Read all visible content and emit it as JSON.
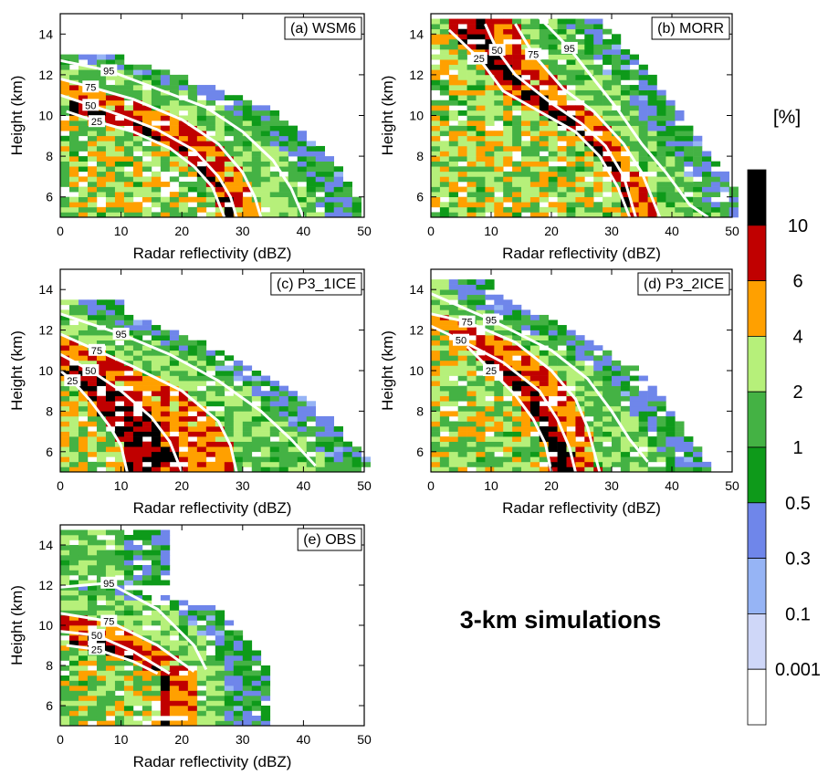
{
  "figure_title": "3-km simulations",
  "colorbar": {
    "unit_label": "[%]",
    "levels": [
      "0.001",
      "0.1",
      "0.3",
      "0.5",
      "1",
      "2",
      "4",
      "6",
      "10"
    ],
    "colors": [
      "#ffffff",
      "#cfd7f8",
      "#96b4f5",
      "#6f86ea",
      "#0e9a1a",
      "#44b244",
      "#b6f07a",
      "#ffa000",
      "#c00000",
      "#000000"
    ]
  },
  "chart_data": [
    {
      "type": "heatmap",
      "panel_label": "(a) WSM6",
      "xlabel": "Radar reflectivity (dBZ)",
      "ylabel": "Height (km)",
      "xlim": [
        0,
        50
      ],
      "ylim": [
        5,
        15
      ],
      "xticks": [
        "0",
        "10",
        "20",
        "30",
        "40",
        "50"
      ],
      "yticks": [
        "6",
        "8",
        "10",
        "12",
        "14"
      ],
      "echo_top_km": 13.0,
      "percentile_curves": [
        {
          "label": "25",
          "points": [
            [
              1,
              10.2
            ],
            [
              6,
              9.7
            ],
            [
              12,
              9.2
            ],
            [
              18,
              8.4
            ],
            [
              22,
              7.5
            ],
            [
              25,
              6.5
            ],
            [
              27,
              5
            ]
          ]
        },
        {
          "label": "50",
          "points": [
            [
              0,
              11.0
            ],
            [
              5,
              10.5
            ],
            [
              10,
              10.0
            ],
            [
              16,
              9.3
            ],
            [
              22,
              8.3
            ],
            [
              26,
              7.0
            ],
            [
              28,
              6.0
            ],
            [
              29,
              5
            ]
          ]
        },
        {
          "label": "75",
          "points": [
            [
              0,
              11.8
            ],
            [
              5,
              11.4
            ],
            [
              12,
              10.8
            ],
            [
              20,
              9.8
            ],
            [
              26,
              8.6
            ],
            [
              30,
              7.2
            ],
            [
              32,
              6.0
            ],
            [
              33,
              5
            ]
          ]
        },
        {
          "label": "95",
          "points": [
            [
              0,
              12.7
            ],
            [
              8,
              12.2
            ],
            [
              16,
              11.3
            ],
            [
              24,
              10.4
            ],
            [
              30,
              9.2
            ],
            [
              35,
              7.8
            ],
            [
              38,
              6.4
            ],
            [
              40,
              5
            ]
          ]
        }
      ]
    },
    {
      "type": "heatmap",
      "panel_label": "(b) MORR",
      "xlabel": "Radar reflectivity (dBZ)",
      "ylabel": "Height (km)",
      "xlim": [
        0,
        50
      ],
      "ylim": [
        5,
        15
      ],
      "xticks": [
        "0",
        "10",
        "20",
        "30",
        "40",
        "50"
      ],
      "yticks": [
        "6",
        "8",
        "10",
        "12",
        "14"
      ],
      "echo_top_km": 14.8,
      "percentile_curves": [
        {
          "label": "25",
          "points": [
            [
              3,
              14.2
            ],
            [
              8,
              12.8
            ],
            [
              12,
              11.2
            ],
            [
              18,
              10.2
            ],
            [
              24,
              9.2
            ],
            [
              28,
              8.0
            ],
            [
              31,
              6.5
            ],
            [
              33,
              5
            ]
          ]
        },
        {
          "label": "50",
          "points": [
            [
              9,
              14.5
            ],
            [
              11,
              13.2
            ],
            [
              14,
              12.0
            ],
            [
              20,
              10.6
            ],
            [
              25,
              9.6
            ],
            [
              29,
              8.5
            ],
            [
              32,
              7.0
            ],
            [
              34,
              5
            ]
          ]
        },
        {
          "label": "75",
          "points": [
            [
              14,
              14.5
            ],
            [
              17,
              13.0
            ],
            [
              22,
              11.3
            ],
            [
              27,
              10.2
            ],
            [
              32,
              8.6
            ],
            [
              35,
              7.2
            ],
            [
              38,
              5
            ]
          ]
        },
        {
          "label": "95",
          "points": [
            [
              18,
              14.8
            ],
            [
              23,
              13.3
            ],
            [
              27,
              11.8
            ],
            [
              31,
              10.3
            ],
            [
              35,
              8.6
            ],
            [
              39,
              7.2
            ],
            [
              43,
              5.6
            ],
            [
              46,
              5
            ]
          ]
        }
      ]
    },
    {
      "type": "heatmap",
      "panel_label": "(c) P3_1ICE",
      "xlabel": "Radar reflectivity (dBZ)",
      "ylabel": "Height (km)",
      "xlim": [
        0,
        50
      ],
      "ylim": [
        5,
        15
      ],
      "xticks": [
        "0",
        "10",
        "20",
        "30",
        "40",
        "50"
      ],
      "yticks": [
        "6",
        "8",
        "10",
        "12",
        "14"
      ],
      "echo_top_km": 13.6,
      "percentile_curves": [
        {
          "label": "25",
          "points": [
            [
              0,
              10.0
            ],
            [
              2,
              9.5
            ],
            [
              5,
              8.5
            ],
            [
              8,
              7.3
            ],
            [
              10,
              6.3
            ],
            [
              11,
              5
            ]
          ]
        },
        {
          "label": "50",
          "points": [
            [
              0,
              10.8
            ],
            [
              5,
              10.0
            ],
            [
              10,
              9.0
            ],
            [
              15,
              7.7
            ],
            [
              18,
              6.5
            ],
            [
              20,
              5
            ]
          ]
        },
        {
          "label": "75",
          "points": [
            [
              0,
              11.8
            ],
            [
              6,
              11.0
            ],
            [
              12,
              10.2
            ],
            [
              20,
              9.0
            ],
            [
              26,
              7.5
            ],
            [
              28,
              6.3
            ],
            [
              29,
              5
            ]
          ]
        },
        {
          "label": "95",
          "points": [
            [
              0,
              12.8
            ],
            [
              10,
              11.8
            ],
            [
              18,
              10.8
            ],
            [
              26,
              9.5
            ],
            [
              33,
              8.0
            ],
            [
              38,
              6.6
            ],
            [
              42,
              5.3
            ]
          ]
        }
      ]
    },
    {
      "type": "heatmap",
      "panel_label": "(d) P3_2ICE",
      "xlabel": "Radar reflectivity (dBZ)",
      "ylabel": "Height (km)",
      "xlim": [
        0,
        50
      ],
      "ylim": [
        5,
        15
      ],
      "xticks": [
        "0",
        "10",
        "20",
        "30",
        "40",
        "50"
      ],
      "yticks": [
        "6",
        "8",
        "10",
        "12",
        "14"
      ],
      "echo_top_km": 14.6,
      "percentile_curves": [
        {
          "label": "25",
          "points": [
            [
              6,
              11.2
            ],
            [
              10,
              10.0
            ],
            [
              14,
              8.8
            ],
            [
              17,
              7.6
            ],
            [
              19,
              6.4
            ],
            [
              20,
              5
            ]
          ]
        },
        {
          "label": "50",
          "points": [
            [
              0,
              12.2
            ],
            [
              5,
              11.5
            ],
            [
              12,
              10.4
            ],
            [
              18,
              9.0
            ],
            [
              21,
              7.6
            ],
            [
              23,
              6.2
            ],
            [
              24,
              5
            ]
          ]
        },
        {
          "label": "75",
          "points": [
            [
              0,
              12.8
            ],
            [
              6,
              12.4
            ],
            [
              14,
              11.4
            ],
            [
              20,
              10.0
            ],
            [
              24,
              8.6
            ],
            [
              26,
              7.2
            ],
            [
              28,
              5
            ]
          ]
        },
        {
          "label": "95",
          "points": [
            [
              0,
              13.8
            ],
            [
              10,
              12.5
            ],
            [
              20,
              11.0
            ],
            [
              26,
              9.6
            ],
            [
              30,
              8.0
            ],
            [
              33,
              6.6
            ],
            [
              36,
              5.5
            ]
          ]
        }
      ]
    },
    {
      "type": "heatmap",
      "panel_label": "(e) OBS",
      "xlabel": "Radar reflectivity (dBZ)",
      "ylabel": "Height (km)",
      "xlim": [
        0,
        50
      ],
      "ylim": [
        5,
        15
      ],
      "xticks": [
        "0",
        "10",
        "20",
        "30",
        "40",
        "50"
      ],
      "yticks": [
        "6",
        "8",
        "10",
        "12",
        "14"
      ],
      "echo_top_km": 14.8,
      "percentile_curves": [
        {
          "label": "25",
          "points": [
            [
              1,
              9.0
            ],
            [
              6,
              8.8
            ],
            [
              12,
              8.2
            ],
            [
              16,
              7.6
            ]
          ]
        },
        {
          "label": "50",
          "points": [
            [
              0,
              9.7
            ],
            [
              6,
              9.5
            ],
            [
              12,
              8.7
            ],
            [
              18,
              7.6
            ]
          ]
        },
        {
          "label": "75",
          "points": [
            [
              0,
              10.6
            ],
            [
              8,
              10.2
            ],
            [
              16,
              9.0
            ],
            [
              22,
              7.7
            ]
          ]
        },
        {
          "label": "95",
          "points": [
            [
              0,
              11.9
            ],
            [
              8,
              12.1
            ],
            [
              16,
              10.8
            ],
            [
              22,
              9.0
            ],
            [
              24,
              7.8
            ]
          ]
        }
      ]
    }
  ]
}
